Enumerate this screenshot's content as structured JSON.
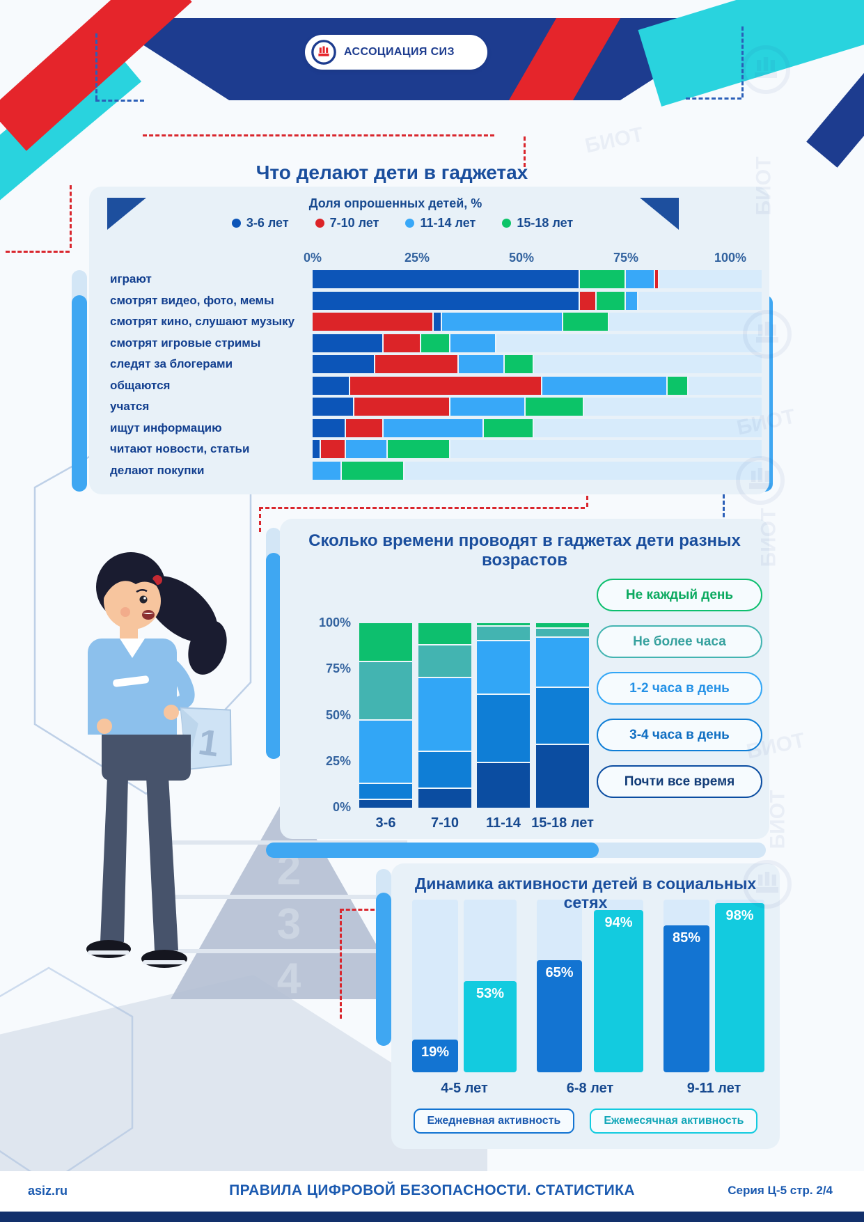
{
  "page": {
    "logo_text": "АССОЦИАЦИЯ СИЗ",
    "watermark": "БИОТ",
    "pyramid_numbers": [
      "1",
      "2",
      "3",
      "4"
    ],
    "footer": {
      "site": "asiz.ru",
      "title": "ПРАВИЛА ЦИФРОВОЙ БЕЗОПАСНОСТИ. СТАТИСТИКА",
      "series": "Серия Ц-5 стр. 2/4"
    }
  },
  "colors": {
    "navy": "#1d3c8f",
    "red": "#e5252b",
    "cyan": "#29d3de",
    "panel_bg": "#e8f1f8",
    "track": "#d7ebfb",
    "title_text": "#1a4e9d"
  },
  "chart_data": [
    {
      "type": "bar",
      "orientation": "horizontal-stacked",
      "title": "Что делают дети в гаджетах",
      "subtitle": "Доля опрошенных детей, %",
      "xlim": [
        0,
        100
      ],
      "x_ticks": [
        "0%",
        "25%",
        "50%",
        "75%",
        "100%"
      ],
      "legend": [
        {
          "label": "3-6 лет",
          "color": "#0c55b8"
        },
        {
          "label": "7-10 лет",
          "color": "#dc2428"
        },
        {
          "label": "11-14 лет",
          "color": "#38a8f8"
        },
        {
          "label": "15-18 лет",
          "color": "#0cc468"
        }
      ],
      "rows": [
        {
          "label": "играют",
          "segments": [
            {
              "group": "3-6 лет",
              "value": 64
            },
            {
              "group": "15-18 лет",
              "value": 11
            },
            {
              "group": "11-14 лет",
              "value": 7
            },
            {
              "group": "7-10 лет",
              "value": 1
            }
          ]
        },
        {
          "label": "смотрят видео, фото, мемы",
          "segments": [
            {
              "group": "3-6 лет",
              "value": 64
            },
            {
              "group": "7-10 лет",
              "value": 4
            },
            {
              "group": "15-18 лет",
              "value": 7
            },
            {
              "group": "11-14 лет",
              "value": 3
            }
          ]
        },
        {
          "label": "смотрят кино, слушают музыку",
          "segments": [
            {
              "group": "7-10 лет",
              "value": 29
            },
            {
              "group": "3-6 лет",
              "value": 2
            },
            {
              "group": "11-14 лет",
              "value": 29
            },
            {
              "group": "15-18 лет",
              "value": 11
            }
          ]
        },
        {
          "label": "смотрят игровые стримы",
          "segments": [
            {
              "group": "3-6 лет",
              "value": 17
            },
            {
              "group": "7-10 лет",
              "value": 9
            },
            {
              "group": "15-18 лет",
              "value": 7
            },
            {
              "group": "11-14 лет",
              "value": 11
            }
          ]
        },
        {
          "label": "следят за блогерами",
          "segments": [
            {
              "group": "3-6 лет",
              "value": 15
            },
            {
              "group": "7-10 лет",
              "value": 20
            },
            {
              "group": "11-14 лет",
              "value": 11
            },
            {
              "group": "15-18 лет",
              "value": 7
            }
          ]
        },
        {
          "label": "общаются",
          "segments": [
            {
              "group": "3-6 лет",
              "value": 9
            },
            {
              "group": "7-10 лет",
              "value": 46
            },
            {
              "group": "11-14 лет",
              "value": 30
            },
            {
              "group": "15-18 лет",
              "value": 5
            }
          ]
        },
        {
          "label": "учатся",
          "segments": [
            {
              "group": "3-6 лет",
              "value": 10
            },
            {
              "group": "7-10 лет",
              "value": 23
            },
            {
              "group": "11-14 лет",
              "value": 18
            },
            {
              "group": "15-18 лет",
              "value": 14
            }
          ]
        },
        {
          "label": "ищут информацию",
          "segments": [
            {
              "group": "3-6 лет",
              "value": 8
            },
            {
              "group": "7-10 лет",
              "value": 9
            },
            {
              "group": "11-14 лет",
              "value": 24
            },
            {
              "group": "15-18 лет",
              "value": 12
            }
          ]
        },
        {
          "label": "читают новости, статьи",
          "segments": [
            {
              "group": "3-6 лет",
              "value": 2
            },
            {
              "group": "7-10 лет",
              "value": 6
            },
            {
              "group": "11-14 лет",
              "value": 10
            },
            {
              "group": "15-18 лет",
              "value": 15
            }
          ]
        },
        {
          "label": "делают покупки",
          "segments": [
            {
              "group": "11-14 лет",
              "value": 7
            },
            {
              "group": "15-18 лет",
              "value": 15
            }
          ]
        }
      ]
    },
    {
      "type": "bar",
      "orientation": "vertical-stacked-100",
      "title": "Сколько времени проводят в гаджетах дети разных возрастов",
      "ylim": [
        0,
        100
      ],
      "y_ticks": [
        "100%",
        "75%",
        "50%",
        "25%",
        "0%"
      ],
      "categories": [
        "3-6",
        "7-10",
        "11-14",
        "15-18 лет"
      ],
      "series": [
        {
          "name": "Не каждый день",
          "color": "#0dbf6e",
          "text_color": "#0aa95f",
          "values": [
            21,
            12,
            2,
            3
          ]
        },
        {
          "name": "Не более часа",
          "color": "#43b4b1",
          "text_color": "#36a19e",
          "values": [
            32,
            18,
            8,
            5
          ]
        },
        {
          "name": "1-2 часа в день",
          "color": "#32a6f6",
          "text_color": "#2491e6",
          "values": [
            34,
            40,
            29,
            27
          ]
        },
        {
          "name": "3-4 часа в день",
          "color": "#0f7ed6",
          "text_color": "#0f6ec2",
          "values": [
            9,
            20,
            37,
            31
          ]
        },
        {
          "name": "Почти все время",
          "color": "#0b4da1",
          "text_color": "#123c77",
          "values": [
            4,
            10,
            24,
            34
          ]
        }
      ],
      "legend_position": "right"
    },
    {
      "type": "bar",
      "orientation": "grouped-vertical",
      "title": "Динамика активности детей в социальных сетях",
      "ylim": [
        0,
        100
      ],
      "value_suffix": "%",
      "categories": [
        "4-5 лет",
        "6-8 лет",
        "9-11 лет"
      ],
      "series": [
        {
          "name": "Ежедневная активность",
          "color": "#1374d2",
          "text_color": "#1b5ab0",
          "values": [
            19,
            65,
            85
          ]
        },
        {
          "name": "Ежемесячная активность",
          "color": "#13cbdf",
          "text_color": "#11a6b8",
          "values": [
            53,
            94,
            98
          ]
        }
      ],
      "legend_position": "bottom"
    }
  ]
}
